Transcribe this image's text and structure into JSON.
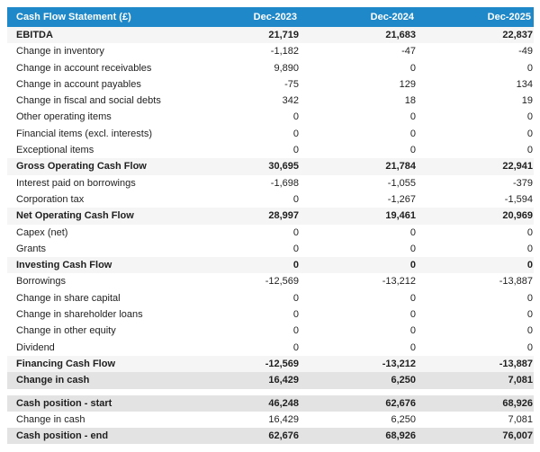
{
  "colors": {
    "header_bg": "#1e88c9",
    "header_text": "#ffffff",
    "subtotal_row_bg": "#f5f5f5",
    "highlight_row_bg": "#e3e3e3",
    "body_text": "#1f1f1f"
  },
  "table": {
    "title": "Cash Flow Statement (£)",
    "columns": [
      "Dec-2023",
      "Dec-2024",
      "Dec-2025"
    ],
    "rows": [
      {
        "label": "EBITDA",
        "values": [
          "21,719",
          "21,683",
          "22,837"
        ],
        "style": "subtotal"
      },
      {
        "label": "Change in inventory",
        "values": [
          "-1,182",
          "-47",
          "-49"
        ],
        "style": "plain"
      },
      {
        "label": "Change in account receivables",
        "values": [
          "9,890",
          "0",
          "0"
        ],
        "style": "plain"
      },
      {
        "label": "Change in account payables",
        "values": [
          "-75",
          "129",
          "134"
        ],
        "style": "plain"
      },
      {
        "label": "Change in fiscal and social debts",
        "values": [
          "342",
          "18",
          "19"
        ],
        "style": "plain"
      },
      {
        "label": "Other operating items",
        "values": [
          "0",
          "0",
          "0"
        ],
        "style": "plain"
      },
      {
        "label": "Financial items (excl. interests)",
        "values": [
          "0",
          "0",
          "0"
        ],
        "style": "plain"
      },
      {
        "label": "Exceptional items",
        "values": [
          "0",
          "0",
          "0"
        ],
        "style": "plain"
      },
      {
        "label": "Gross Operating Cash Flow",
        "values": [
          "30,695",
          "21,784",
          "22,941"
        ],
        "style": "subtotal"
      },
      {
        "label": "Interest paid on borrowings",
        "values": [
          "-1,698",
          "-1,055",
          "-379"
        ],
        "style": "plain"
      },
      {
        "label": "Corporation tax",
        "values": [
          "0",
          "-1,267",
          "-1,594"
        ],
        "style": "plain"
      },
      {
        "label": "Net Operating Cash Flow",
        "values": [
          "28,997",
          "19,461",
          "20,969"
        ],
        "style": "subtotal"
      },
      {
        "label": "Capex (net)",
        "values": [
          "0",
          "0",
          "0"
        ],
        "style": "plain"
      },
      {
        "label": "Grants",
        "values": [
          "0",
          "0",
          "0"
        ],
        "style": "plain"
      },
      {
        "label": "Investing Cash Flow",
        "values": [
          "0",
          "0",
          "0"
        ],
        "style": "subtotal"
      },
      {
        "label": "Borrowings",
        "values": [
          "-12,569",
          "-13,212",
          "-13,887"
        ],
        "style": "plain"
      },
      {
        "label": "Change in share capital",
        "values": [
          "0",
          "0",
          "0"
        ],
        "style": "plain"
      },
      {
        "label": "Change in shareholder loans",
        "values": [
          "0",
          "0",
          "0"
        ],
        "style": "plain"
      },
      {
        "label": "Change in other equity",
        "values": [
          "0",
          "0",
          "0"
        ],
        "style": "plain"
      },
      {
        "label": "Dividend",
        "values": [
          "0",
          "0",
          "0"
        ],
        "style": "plain"
      },
      {
        "label": "Financing Cash Flow",
        "values": [
          "-12,569",
          "-13,212",
          "-13,887"
        ],
        "style": "subtotal"
      },
      {
        "label": "Change in cash",
        "values": [
          "16,429",
          "6,250",
          "7,081"
        ],
        "style": "highlight"
      }
    ],
    "summary_rows": [
      {
        "label": "Cash position - start",
        "values": [
          "46,248",
          "62,676",
          "68,926"
        ],
        "style": "highlight"
      },
      {
        "label": "Change in cash",
        "values": [
          "16,429",
          "6,250",
          "7,081"
        ],
        "style": "plain"
      },
      {
        "label": "Cash position - end",
        "values": [
          "62,676",
          "68,926",
          "76,007"
        ],
        "style": "highlight"
      }
    ]
  }
}
